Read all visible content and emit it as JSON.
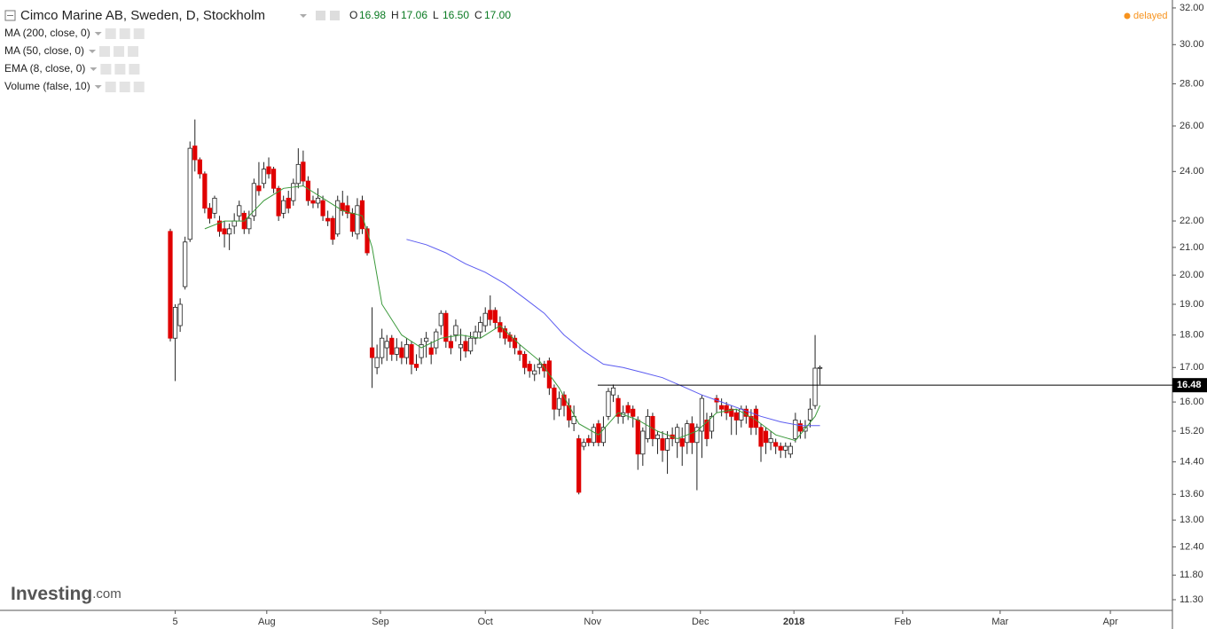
{
  "chart_data": {
    "type": "candlestick",
    "title": "Cimco Marine AB, Sweden, D, Stockholm",
    "ohlc_header": [
      {
        "key": "O",
        "text": "16.98"
      },
      {
        "key": "H",
        "text": "17.06"
      },
      {
        "key": "L",
        "text": "16.50"
      },
      {
        "key": "C",
        "text": "17.00"
      }
    ],
    "indicators": [
      "MA (200, close, 0)",
      "MA (50, close, 0)",
      "EMA (8, close, 0)",
      "Volume (false, 10)"
    ],
    "status": "delayed",
    "brand": "Investing",
    "brand_suffix": ".com",
    "log_scale": true,
    "grid": false,
    "up_color": "#ffffff",
    "down_color": "#e00000",
    "ylim": [
      11.09,
      32.45
    ],
    "yticks": [
      {
        "value": 32,
        "label": "32.00"
      },
      {
        "value": 30,
        "label": "30.00"
      },
      {
        "value": 28,
        "label": "28.00"
      },
      {
        "value": 26,
        "label": "26.00"
      },
      {
        "value": 24,
        "label": "24.00"
      },
      {
        "value": 22,
        "label": "22.00"
      },
      {
        "value": 21,
        "label": "21.00"
      },
      {
        "value": 20,
        "label": "20.00"
      },
      {
        "value": 19,
        "label": "19.00"
      },
      {
        "value": 18,
        "label": "18.00"
      },
      {
        "value": 17,
        "label": "17.00"
      },
      {
        "value": 16,
        "label": "16.00"
      },
      {
        "value": 15.2,
        "label": "15.20"
      },
      {
        "value": 14.4,
        "label": "14.40"
      },
      {
        "value": 13.6,
        "label": "13.60"
      },
      {
        "value": 13,
        "label": "13.00"
      },
      {
        "value": 12.4,
        "label": "12.40"
      },
      {
        "value": 11.8,
        "label": "11.80"
      },
      {
        "value": 11.3,
        "label": "11.30"
      }
    ],
    "xlim": [
      -34.6,
      203.6
    ],
    "xticks": [
      {
        "value": 1,
        "label": "5"
      },
      {
        "value": 19.6,
        "label": "Aug"
      },
      {
        "value": 42.7,
        "label": "Sep"
      },
      {
        "value": 64,
        "label": "Oct"
      },
      {
        "value": 85.8,
        "label": "Nov"
      },
      {
        "value": 107.7,
        "label": "Dec"
      },
      {
        "value": 126.7,
        "label": "2018"
      },
      {
        "value": 148.8,
        "label": "Feb"
      },
      {
        "value": 168.6,
        "label": "Mar"
      },
      {
        "value": 191,
        "label": "Apr"
      }
    ],
    "open": [
      21.6,
      17.9,
      18.3,
      19.6,
      21.3,
      25.1,
      24.5,
      23.9,
      22.5,
      22.3,
      22.0,
      21.7,
      21.5,
      21.8,
      22.2,
      22.3,
      21.7,
      22.2,
      23.4,
      23.5,
      24.2,
      24.1,
      23.3,
      22.3,
      22.9,
      22.8,
      23.5,
      24.4,
      23.6,
      22.8,
      22.7,
      22.8,
      22.1,
      22.1,
      21.5,
      22.7,
      22.6,
      22.3,
      21.5,
      22.8,
      21.7,
      17.6,
      17.0,
      17.3,
      17.6,
      17.9,
      17.4,
      17.6,
      17.3,
      17.7,
      17.1,
      17.3,
      17.8,
      17.6,
      17.6,
      18.3,
      18.7,
      17.8,
      18.0,
      17.6,
      17.8,
      17.5,
      17.9,
      18.1,
      18.3,
      18.8,
      18.8,
      18.4,
      18.2,
      18.0,
      17.9,
      17.5,
      17.4,
      17.1,
      16.8,
      17.0,
      17.1,
      17.2,
      16.4,
      15.8,
      16.2,
      15.9,
      15.4,
      15.0,
      14.8,
      15.0,
      14.9,
      15.4,
      14.9,
      15.6,
      16.2,
      16.1,
      15.6,
      15.9,
      15.8,
      15.5,
      14.6,
      15.0,
      15.6,
      15.0,
      15.0,
      14.7,
      15.1,
      14.9,
      15.0,
      14.9,
      15.4,
      14.9,
      15.2,
      15.5,
      15.2,
      16.1,
      15.9,
      15.9,
      15.8,
      15.7,
      15.5,
      15.8,
      15.6,
      15.8,
      15.3,
      15.2,
      14.9,
      14.9,
      14.8,
      14.7,
      14.6,
      15.0,
      15.4,
      15.2,
      15.5,
      15.9,
      16.98
    ],
    "high": [
      21.7,
      19.0,
      19.2,
      21.4,
      25.3,
      26.3,
      24.6,
      24.0,
      22.7,
      23.0,
      22.2,
      22.0,
      21.9,
      22.3,
      22.8,
      22.4,
      22.4,
      23.7,
      24.4,
      24.4,
      24.6,
      24.2,
      23.4,
      23.0,
      23.2,
      23.7,
      25.0,
      24.9,
      23.8,
      23.0,
      23.3,
      23.0,
      22.4,
      22.2,
      23.0,
      23.2,
      23.0,
      22.5,
      22.9,
      23.0,
      21.8,
      18.9,
      17.7,
      18.2,
      18.0,
      18.0,
      17.9,
      17.8,
      17.9,
      17.8,
      17.4,
      17.9,
      18.1,
      17.8,
      18.2,
      18.8,
      18.8,
      18.0,
      18.5,
      18.2,
      18.0,
      18.1,
      18.3,
      18.6,
      18.9,
      19.3,
      18.9,
      18.6,
      18.3,
      18.1,
      18.0,
      17.7,
      17.5,
      17.2,
      17.1,
      17.3,
      17.2,
      17.3,
      16.5,
      16.3,
      16.3,
      16.1,
      15.9,
      15.1,
      15.0,
      15.1,
      15.4,
      15.5,
      15.6,
      16.4,
      16.5,
      16.2,
      15.9,
      16.0,
      15.9,
      15.6,
      15.3,
      15.8,
      15.7,
      15.2,
      15.2,
      15.2,
      15.3,
      15.4,
      15.3,
      15.5,
      15.6,
      15.4,
      16.2,
      15.7,
      15.7,
      16.2,
      16.1,
      16.0,
      15.9,
      15.8,
      15.9,
      15.9,
      15.8,
      15.9,
      15.4,
      15.3,
      15.2,
      15.0,
      14.9,
      14.9,
      14.9,
      15.7,
      15.5,
      15.5,
      16.1,
      18.0,
      17.06
    ],
    "low": [
      17.8,
      16.6,
      18.1,
      19.5,
      21.2,
      24.0,
      23.7,
      22.3,
      21.9,
      22.1,
      21.4,
      21.0,
      20.9,
      21.5,
      22.0,
      21.5,
      21.5,
      22.0,
      23.0,
      23.3,
      23.7,
      23.1,
      22.0,
      22.1,
      22.3,
      22.6,
      23.3,
      23.4,
      22.6,
      22.5,
      22.5,
      22.0,
      21.8,
      21.1,
      21.4,
      22.2,
      22.1,
      21.4,
      21.3,
      21.5,
      20.7,
      16.4,
      16.8,
      17.1,
      17.2,
      17.2,
      17.2,
      17.1,
      17.1,
      16.8,
      16.9,
      17.1,
      17.3,
      17.1,
      17.4,
      18.0,
      17.6,
      17.4,
      17.8,
      17.2,
      17.3,
      17.4,
      17.7,
      17.9,
      18.1,
      18.3,
      18.2,
      17.9,
      17.7,
      17.6,
      17.4,
      17.2,
      16.8,
      16.7,
      16.6,
      16.8,
      16.7,
      16.2,
      15.5,
      15.6,
      15.6,
      15.3,
      15.2,
      13.6,
      14.7,
      14.8,
      14.8,
      14.8,
      14.8,
      15.5,
      16.0,
      15.4,
      15.4,
      15.5,
      15.3,
      14.2,
      14.3,
      14.9,
      14.8,
      14.6,
      14.4,
      14.1,
      14.8,
      14.5,
      14.3,
      14.6,
      14.6,
      13.7,
      14.5,
      14.8,
      15.0,
      15.7,
      15.6,
      15.5,
      15.1,
      15.1,
      15.3,
      15.4,
      15.1,
      15.1,
      14.4,
      14.6,
      14.7,
      14.6,
      14.5,
      14.5,
      14.5,
      14.9,
      15.0,
      15.0,
      15.3,
      15.8,
      16.5
    ],
    "close": [
      17.9,
      18.9,
      19.0,
      21.2,
      25.0,
      24.5,
      23.9,
      22.5,
      22.1,
      22.9,
      21.6,
      21.5,
      21.7,
      22.0,
      22.6,
      21.7,
      22.1,
      23.5,
      23.2,
      24.1,
      23.9,
      23.3,
      22.2,
      22.8,
      22.5,
      23.5,
      24.3,
      23.6,
      22.8,
      22.7,
      22.9,
      22.2,
      22.0,
      21.3,
      22.8,
      22.4,
      22.3,
      21.6,
      22.6,
      21.7,
      20.8,
      17.3,
      17.3,
      17.9,
      17.8,
      17.4,
      17.6,
      17.3,
      17.7,
      17.1,
      17.0,
      17.7,
      17.9,
      17.4,
      18.1,
      18.7,
      17.8,
      17.6,
      18.3,
      17.7,
      17.5,
      17.9,
      18.1,
      18.4,
      18.7,
      18.5,
      18.4,
      18.1,
      17.9,
      17.8,
      17.6,
      17.4,
      17.0,
      16.9,
      16.9,
      17.1,
      16.9,
      16.4,
      15.8,
      16.1,
      15.9,
      15.5,
      15.6,
      13.65,
      14.9,
      14.9,
      15.3,
      14.9,
      15.3,
      16.3,
      16.4,
      15.6,
      15.7,
      15.7,
      15.6,
      14.6,
      15.2,
      15.6,
      15.0,
      15.1,
      14.7,
      15.0,
      15.0,
      15.3,
      14.8,
      15.4,
      14.9,
      15.3,
      16.1,
      15.0,
      15.6,
      16.0,
      15.8,
      15.7,
      15.6,
      15.5,
      15.8,
      15.6,
      15.3,
      15.3,
      14.8,
      14.9,
      15.0,
      14.8,
      14.7,
      14.8,
      14.8,
      15.5,
      15.2,
      15.3,
      15.8,
      16.98,
      17.0
    ],
    "series": [
      {
        "name": "MA (50, close, 0)",
        "color": "#5b5bf0",
        "x": [
          48,
          52,
          56,
          60,
          64,
          68,
          72,
          76,
          80,
          84,
          88,
          92,
          96,
          100,
          104,
          108,
          112,
          116,
          120,
          124,
          128,
          132
        ],
        "values": [
          21.3,
          21.1,
          20.8,
          20.4,
          20.1,
          19.7,
          19.2,
          18.7,
          18.0,
          17.5,
          17.1,
          17.0,
          16.85,
          16.7,
          16.45,
          16.2,
          16.0,
          15.8,
          15.6,
          15.45,
          15.35,
          15.35
        ]
      },
      {
        "name": "EMA (8, close, 0)",
        "color": "#3c9a3c",
        "x": [
          7,
          11,
          15,
          19,
          23,
          27,
          31,
          35,
          39,
          41,
          43,
          47,
          51,
          55,
          59,
          63,
          67,
          71,
          75,
          79,
          83,
          87,
          91,
          95,
          99,
          103,
          107,
          111,
          115,
          119,
          123,
          127,
          131,
          132
        ],
        "values": [
          21.7,
          22.0,
          22.0,
          22.8,
          23.3,
          23.4,
          22.9,
          22.4,
          22.2,
          21.0,
          19.0,
          18.0,
          17.6,
          17.9,
          18.0,
          17.9,
          18.3,
          17.7,
          17.2,
          16.4,
          15.4,
          15.1,
          15.7,
          15.5,
          15.2,
          15.0,
          15.2,
          15.7,
          15.8,
          15.5,
          15.1,
          14.95,
          15.6,
          15.9
        ]
      }
    ],
    "price_line": {
      "value": 16.48,
      "label": "16.48"
    }
  }
}
